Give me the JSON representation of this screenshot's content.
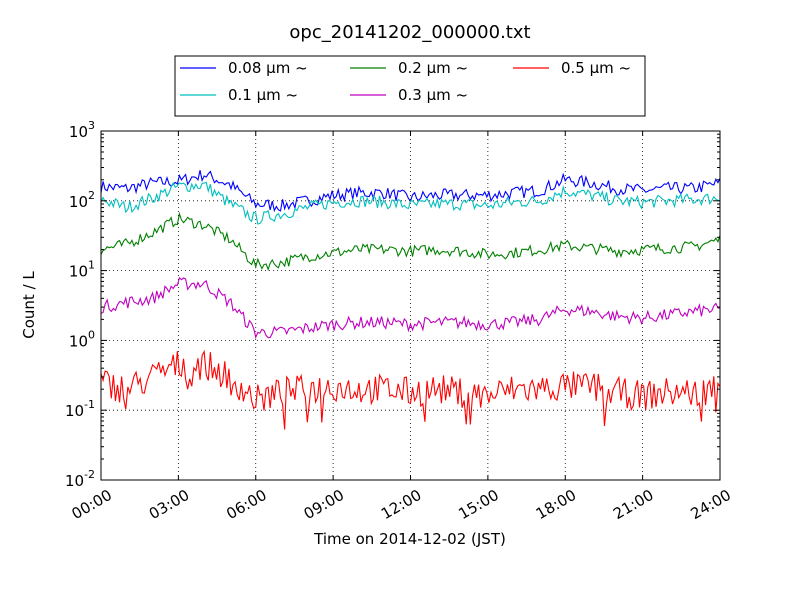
{
  "chart_data": {
    "type": "line",
    "title": "opc_20141202_000000.txt",
    "xlabel": "Time on 2014-12-02 (JST)",
    "ylabel": "Count / L",
    "xlim_hours": [
      0,
      24
    ],
    "x_ticks": [
      "00:00",
      "03:00",
      "06:00",
      "09:00",
      "12:00",
      "15:00",
      "18:00",
      "21:00",
      "24:00"
    ],
    "y_scale": "log",
    "ylim": [
      0.01,
      1000
    ],
    "y_ticks": [
      {
        "base": "10",
        "exp": "-2"
      },
      {
        "base": "10",
        "exp": "-1"
      },
      {
        "base": "10",
        "exp": "0"
      },
      {
        "base": "10",
        "exp": "1"
      },
      {
        "base": "10",
        "exp": "2"
      },
      {
        "base": "10",
        "exp": "3"
      }
    ],
    "grid": true,
    "legend_placement": "top-center",
    "x_hours": [
      0,
      1,
      2,
      3,
      4,
      5,
      6,
      7,
      8,
      9,
      10,
      11,
      12,
      13,
      14,
      15,
      16,
      17,
      18,
      19,
      20,
      21,
      22,
      23,
      24
    ],
    "series": [
      {
        "name": "0.08 μm ~",
        "color": "#0000ff",
        "values": [
          160,
          150,
          180,
          190,
          240,
          170,
          90,
          85,
          100,
          120,
          130,
          130,
          110,
          120,
          120,
          120,
          130,
          140,
          200,
          180,
          150,
          140,
          150,
          150,
          180
        ]
      },
      {
        "name": "0.1 μm ~",
        "color": "#00bfbf",
        "values": [
          105,
          80,
          110,
          160,
          170,
          90,
          55,
          65,
          80,
          95,
          100,
          95,
          85,
          90,
          90,
          85,
          95,
          100,
          140,
          120,
          100,
          95,
          100,
          105,
          110
        ]
      },
      {
        "name": "0.2 μm ~",
        "color": "#008000",
        "values": [
          20,
          24,
          35,
          55,
          45,
          28,
          12,
          13,
          16,
          18,
          20,
          20,
          19,
          20,
          19,
          17,
          18,
          20,
          23,
          21,
          19,
          20,
          21,
          22,
          28
        ]
      },
      {
        "name": "0.3 μm ~",
        "color": "#bf00bf",
        "values": [
          3,
          3.5,
          4,
          6.5,
          6.5,
          3.5,
          1.3,
          1.3,
          1.5,
          1.7,
          1.8,
          1.8,
          1.7,
          1.8,
          1.8,
          1.7,
          1.8,
          2,
          2.8,
          2.6,
          2.2,
          2.1,
          2.3,
          2.6,
          2.8
        ]
      },
      {
        "name": "0.5 μm ~",
        "color": "#ff0000",
        "values": [
          0.25,
          0.2,
          0.3,
          0.45,
          0.45,
          0.3,
          0.14,
          0.18,
          0.2,
          0.22,
          0.2,
          0.2,
          0.18,
          0.2,
          0.18,
          0.16,
          0.2,
          0.2,
          0.22,
          0.22,
          0.18,
          0.16,
          0.18,
          0.18,
          0.22
        ]
      }
    ]
  }
}
